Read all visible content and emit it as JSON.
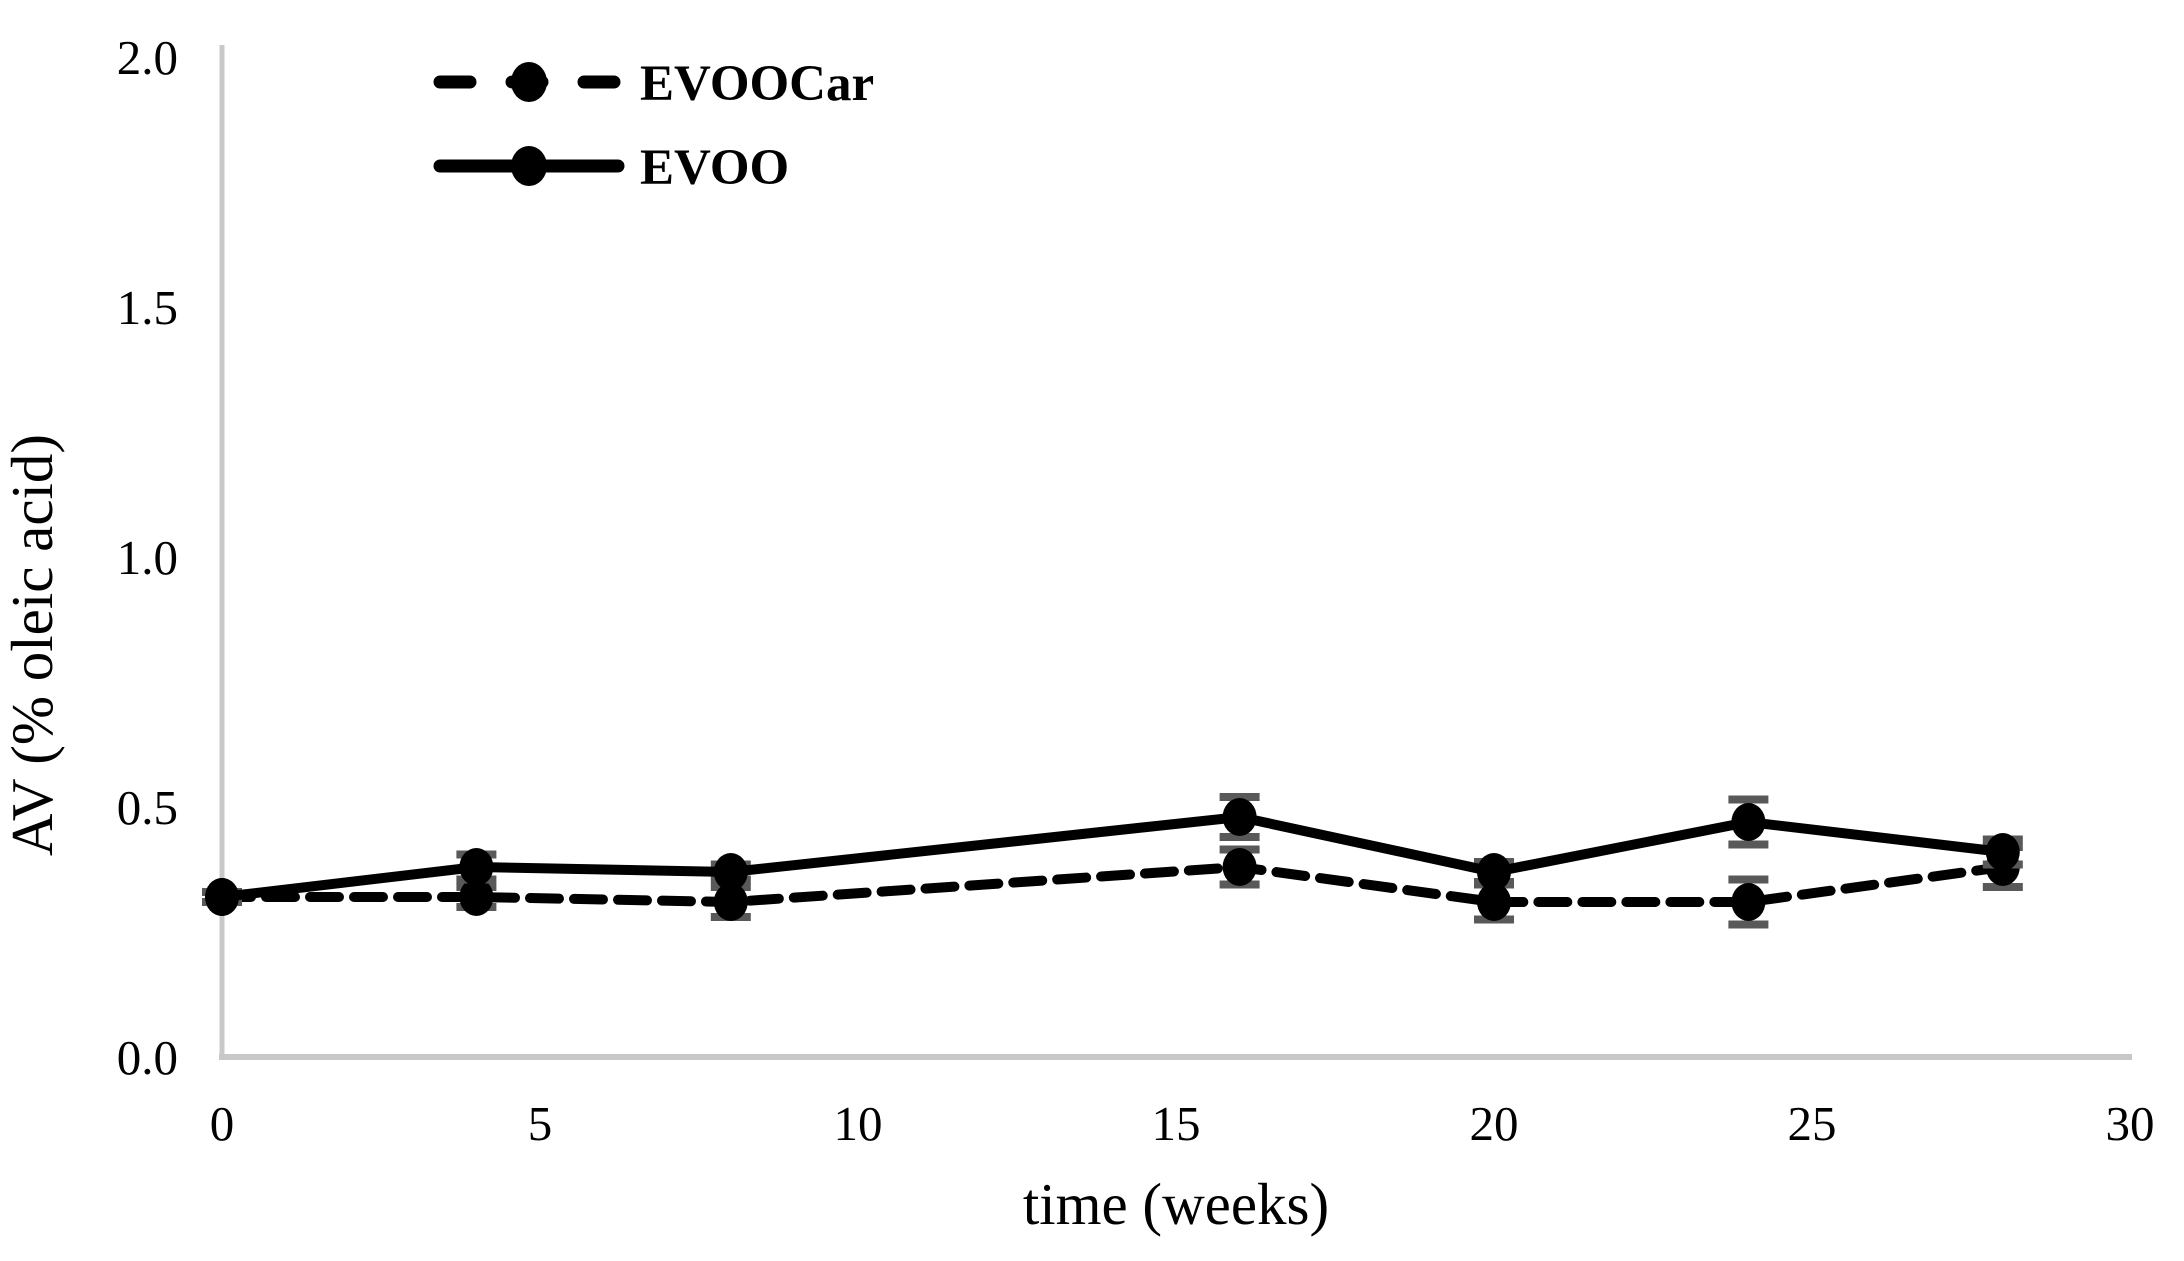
{
  "chart_data": {
    "type": "line",
    "title": "",
    "xlabel": "time (weeks)",
    "ylabel": "AV (% oleic acid)",
    "xlim": [
      0,
      30
    ],
    "ylim": [
      0.0,
      2.0
    ],
    "x_ticks": [
      0,
      5,
      10,
      15,
      20,
      25,
      30
    ],
    "x_tick_labels": [
      "0",
      "5",
      "10",
      "15",
      "20",
      "25",
      "30"
    ],
    "y_ticks": [
      0.0,
      0.5,
      1.0,
      1.5,
      2.0
    ],
    "y_tick_labels": [
      "0.0",
      "0.5",
      "1.0",
      "1.5",
      "2.0"
    ],
    "grid": false,
    "legend_position": "top-left-inside",
    "x": [
      0,
      4,
      8,
      16,
      20,
      24,
      28
    ],
    "series": [
      {
        "name": "EVOOCar",
        "line_style": "dashed",
        "marker": "circle",
        "values": [
          0.32,
          0.32,
          0.31,
          0.38,
          0.31,
          0.31,
          0.38
        ],
        "error_bars": [
          0.01,
          0.02,
          0.03,
          0.035,
          0.035,
          0.045,
          0.04
        ]
      },
      {
        "name": "EVOO",
        "line_style": "solid",
        "marker": "circle",
        "values": [
          0.32,
          0.38,
          0.37,
          0.48,
          0.37,
          0.47,
          0.41
        ],
        "error_bars": [
          0.01,
          0.025,
          0.015,
          0.04,
          0.02,
          0.045,
          0.025
        ]
      }
    ],
    "colors": {
      "series": "#000000",
      "error_bar": "#595959",
      "axis_line": "#c8c8c8",
      "background": "#ffffff"
    }
  }
}
